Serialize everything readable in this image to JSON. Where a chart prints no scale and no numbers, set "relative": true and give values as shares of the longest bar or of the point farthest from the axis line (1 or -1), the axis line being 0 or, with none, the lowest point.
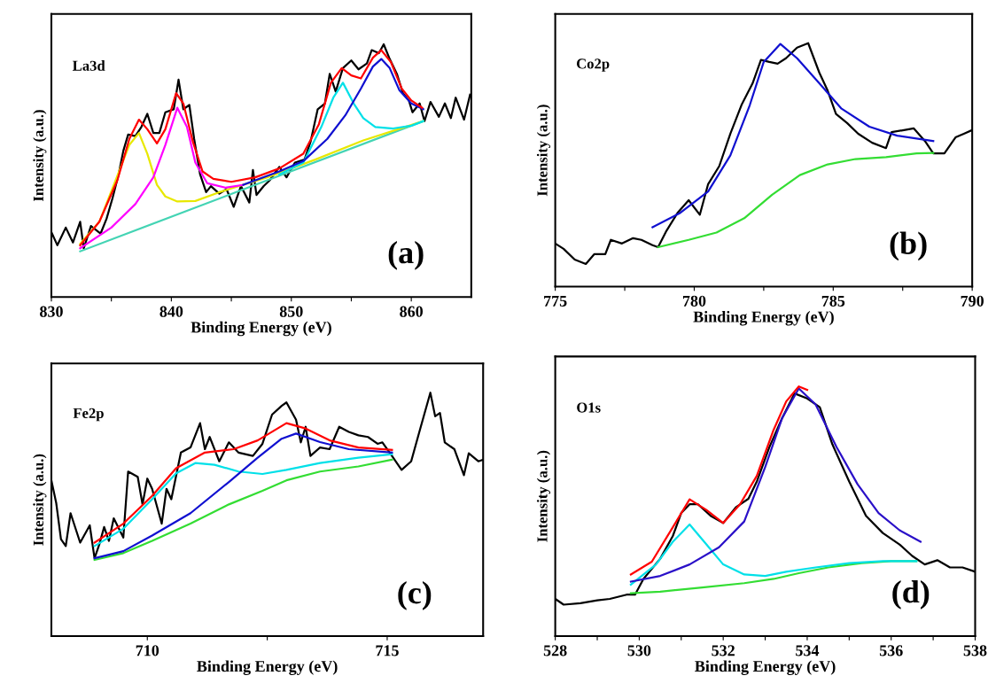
{
  "chart_data": [
    {
      "type": "line",
      "relative": true,
      "tick_labels": "x",
      "xlabel": "Binding Energy (eV)",
      "ylabel": "Intensity (a.u.)",
      "annotations": [
        "La3d",
        "(a)"
      ],
      "xlim": [
        830,
        865
      ],
      "xticks": [
        830,
        {
          "value": 835,
          "label": null
        },
        840,
        {
          "value": 845,
          "label": null
        },
        850,
        {
          "value": 855,
          "label": null
        },
        860
      ],
      "series": [
        {
          "color": "#000000",
          "x": [
            830.0,
            830.5,
            831.2,
            831.8,
            832.4,
            832.7,
            833.3,
            834.1,
            834.6,
            835.1,
            835.6,
            836.0,
            836.4,
            837.0,
            837.5,
            838.0,
            838.5,
            839.0,
            839.5,
            840.2,
            840.6,
            841.0,
            841.5,
            841.9,
            842.4,
            842.9,
            843.3,
            844.0,
            844.6,
            845.2,
            845.8,
            846.5,
            846.8,
            847.1,
            847.7,
            848.2,
            849.0,
            849.6,
            850.3,
            851.1,
            851.6,
            852.2,
            852.8,
            853.2,
            853.7,
            854.3,
            855.0,
            855.6,
            856.3,
            856.7,
            857.3,
            857.7,
            858.2,
            858.8,
            859.3,
            859.8,
            860.1,
            860.7,
            861.1,
            861.6,
            862.3,
            862.8,
            863.3,
            863.7,
            864.4,
            864.9
          ],
          "values": [
            0.257,
            0.205,
            0.275,
            0.216,
            0.298,
            0.193,
            0.281,
            0.251,
            0.31,
            0.392,
            0.485,
            0.579,
            0.643,
            0.637,
            0.673,
            0.725,
            0.649,
            0.649,
            0.731,
            0.743,
            0.86,
            0.743,
            0.76,
            0.626,
            0.485,
            0.415,
            0.439,
            0.409,
            0.427,
            0.357,
            0.439,
            0.374,
            0.503,
            0.404,
            0.439,
            0.462,
            0.515,
            0.474,
            0.532,
            0.544,
            0.614,
            0.743,
            0.766,
            0.883,
            0.813,
            0.906,
            0.936,
            0.901,
            0.924,
            0.977,
            0.965,
            1.0,
            0.942,
            0.883,
            0.807,
            0.778,
            0.731,
            0.766,
            0.696,
            0.772,
            0.713,
            0.766,
            0.708,
            0.789,
            0.702,
            0.801
          ]
        },
        {
          "color": "#44d4b4",
          "x": [
            832.4,
            846.0,
            861.0
          ],
          "values": [
            0.181,
            0.426,
            0.696
          ]
        },
        {
          "color": "#e8e800",
          "x": [
            832.4,
            834.0,
            835.5,
            836.5,
            837.3,
            838.0,
            838.8,
            839.5,
            840.5,
            842.0,
            844.0,
            848.0,
            852.0,
            856.0,
            861.0
          ],
          "values": [
            0.211,
            0.298,
            0.48,
            0.602,
            0.649,
            0.567,
            0.444,
            0.398,
            0.378,
            0.38,
            0.415,
            0.474,
            0.544,
            0.62,
            0.696
          ]
        },
        {
          "color": "#ff00ff",
          "x": [
            832.4,
            835.0,
            837.0,
            838.5,
            839.5,
            840.5,
            841.3,
            842.0,
            843.0,
            844.5,
            846.0
          ],
          "values": [
            0.193,
            0.275,
            0.368,
            0.474,
            0.602,
            0.749,
            0.673,
            0.532,
            0.45,
            0.433,
            0.444
          ]
        },
        {
          "color": "#00e0e8",
          "x": [
            849.0,
            851.0,
            852.5,
            853.5,
            854.3,
            855.2,
            856.0,
            857.0,
            858.5,
            860.0,
            861.0
          ],
          "values": [
            0.485,
            0.532,
            0.673,
            0.789,
            0.848,
            0.766,
            0.708,
            0.673,
            0.667,
            0.678,
            0.696
          ]
        },
        {
          "color": "#1010d0",
          "x": [
            846.0,
            849.0,
            851.0,
            853.0,
            854.5,
            855.8,
            856.8,
            857.5,
            858.2,
            859.0,
            860.0,
            861.0
          ],
          "values": [
            0.444,
            0.497,
            0.538,
            0.626,
            0.719,
            0.825,
            0.912,
            0.942,
            0.906,
            0.819,
            0.766,
            0.743
          ]
        },
        {
          "color": "#ff0000",
          "x": [
            832.4,
            834.0,
            835.5,
            836.5,
            837.3,
            838.0,
            838.8,
            839.5,
            840.4,
            841.0,
            841.8,
            842.6,
            843.5,
            845.0,
            847.0,
            849.0,
            851.0,
            852.3,
            853.3,
            854.2,
            855.0,
            855.8,
            856.8,
            857.5,
            858.3,
            859.2,
            860.0,
            860.9
          ],
          "values": [
            0.205,
            0.298,
            0.462,
            0.626,
            0.702,
            0.664,
            0.608,
            0.664,
            0.807,
            0.766,
            0.614,
            0.497,
            0.468,
            0.456,
            0.474,
            0.509,
            0.567,
            0.684,
            0.848,
            0.906,
            0.877,
            0.865,
            0.947,
            0.977,
            0.93,
            0.825,
            0.778,
            0.749
          ]
        }
      ]
    },
    {
      "type": "line",
      "relative": true,
      "tick_labels": "x",
      "xlabel": "Binding Energy (eV)",
      "ylabel": "Intensity (a.u.)",
      "annotations": [
        "Co2p",
        "(b)"
      ],
      "xlim": [
        775,
        790
      ],
      "xticks": [
        775,
        {
          "value": 777.5,
          "label": null
        },
        780,
        {
          "value": 782.5,
          "label": null
        },
        785,
        {
          "value": 787.5,
          "label": null
        },
        790
      ],
      "series": [
        {
          "color": "#000000",
          "x": [
            775.0,
            775.3,
            775.7,
            776.1,
            776.4,
            776.8,
            777.0,
            777.4,
            777.8,
            778.1,
            778.5,
            778.7,
            779.0,
            779.4,
            779.8,
            780.2,
            780.5,
            780.9,
            781.3,
            781.7,
            782.1,
            782.4,
            782.7,
            783.0,
            783.3,
            783.7,
            784.1,
            784.5,
            784.8,
            785.1,
            785.5,
            785.9,
            786.4,
            786.9,
            787.1,
            787.5,
            787.9,
            788.3,
            788.6,
            789.0,
            789.4,
            789.7,
            790.0
          ],
          "values": [
            0.177,
            0.155,
            0.111,
            0.093,
            0.133,
            0.133,
            0.192,
            0.177,
            0.199,
            0.192,
            0.17,
            0.162,
            0.229,
            0.303,
            0.355,
            0.295,
            0.421,
            0.495,
            0.628,
            0.746,
            0.835,
            0.931,
            0.923,
            0.916,
            0.938,
            0.982,
            1.0,
            0.879,
            0.805,
            0.709,
            0.672,
            0.628,
            0.591,
            0.569,
            0.635,
            0.642,
            0.65,
            0.598,
            0.547,
            0.547,
            0.613,
            0.628,
            0.643
          ]
        },
        {
          "color": "#33dd33",
          "x": [
            778.7,
            779.8,
            780.8,
            781.8,
            782.8,
            783.8,
            784.8,
            785.8,
            786.9,
            788.0,
            788.6
          ],
          "values": [
            0.162,
            0.192,
            0.222,
            0.281,
            0.377,
            0.458,
            0.502,
            0.524,
            0.532,
            0.547,
            0.549
          ]
        },
        {
          "color": "#1010d0",
          "x": [
            778.5,
            779.5,
            780.5,
            781.3,
            782.0,
            782.5,
            783.1,
            783.7,
            784.5,
            785.3,
            786.3,
            787.3,
            788.6
          ],
          "values": [
            0.244,
            0.303,
            0.391,
            0.539,
            0.746,
            0.923,
            0.997,
            0.938,
            0.835,
            0.731,
            0.657,
            0.62,
            0.598
          ]
        }
      ]
    },
    {
      "type": "line",
      "relative": true,
      "tick_labels": "x",
      "xlabel": "Binding Energy (eV)",
      "ylabel": "Intensity (a.u.)",
      "annotations": [
        "Fe2p",
        "(c)"
      ],
      "xlim": [
        708,
        717
      ],
      "xticks": [
        710,
        {
          "value": 712.5,
          "label": null
        },
        715
      ],
      "series": [
        {
          "color": "#000000",
          "x": [
            708.0,
            708.1,
            708.2,
            708.3,
            708.4,
            708.6,
            708.8,
            708.9,
            709.0,
            709.1,
            709.2,
            709.3,
            709.5,
            709.6,
            709.8,
            709.9,
            710.0,
            710.1,
            710.3,
            710.4,
            710.5,
            710.7,
            710.9,
            711.1,
            711.2,
            711.3,
            711.5,
            711.7,
            711.9,
            712.2,
            712.4,
            712.6,
            712.8,
            712.9,
            713.1,
            713.2,
            713.3,
            713.4,
            713.6,
            713.8,
            714.0,
            714.2,
            714.4,
            714.6,
            714.8,
            714.9,
            715.1,
            715.3,
            715.5,
            715.7,
            715.9,
            716.0,
            716.1,
            716.2,
            716.4,
            716.6,
            716.7,
            716.9,
            717.0
          ],
          "values": [
            0.64,
            0.548,
            0.398,
            0.37,
            0.505,
            0.384,
            0.455,
            0.32,
            0.377,
            0.448,
            0.391,
            0.484,
            0.405,
            0.676,
            0.654,
            0.541,
            0.647,
            0.605,
            0.462,
            0.605,
            0.562,
            0.754,
            0.775,
            0.875,
            0.768,
            0.818,
            0.718,
            0.796,
            0.754,
            0.74,
            0.79,
            0.91,
            0.946,
            0.96,
            0.889,
            0.796,
            0.86,
            0.74,
            0.775,
            0.768,
            0.86,
            0.839,
            0.825,
            0.818,
            0.79,
            0.796,
            0.74,
            0.683,
            0.718,
            0.86,
            1.0,
            0.903,
            0.917,
            0.796,
            0.768,
            0.661,
            0.751,
            0.718,
            0.725
          ]
        },
        {
          "color": "#33dd33",
          "x": [
            708.9,
            709.5,
            710.1,
            710.9,
            711.7,
            712.4,
            712.9,
            713.6,
            714.4,
            715.1
          ],
          "values": [
            0.313,
            0.341,
            0.391,
            0.462,
            0.541,
            0.597,
            0.64,
            0.676,
            0.697,
            0.725
          ]
        },
        {
          "color": "#00e0e8",
          "x": [
            708.9,
            709.5,
            710.1,
            710.6,
            711.0,
            711.4,
            711.9,
            712.4,
            712.9,
            713.6,
            714.4,
            715.1
          ],
          "values": [
            0.37,
            0.441,
            0.562,
            0.669,
            0.711,
            0.704,
            0.676,
            0.666,
            0.683,
            0.711,
            0.733,
            0.747
          ]
        },
        {
          "color": "#1010d0",
          "x": [
            708.9,
            709.5,
            710.1,
            710.9,
            711.7,
            712.3,
            712.8,
            713.1,
            713.6,
            714.2,
            715.1
          ],
          "values": [
            0.32,
            0.349,
            0.413,
            0.505,
            0.633,
            0.733,
            0.811,
            0.832,
            0.797,
            0.768,
            0.754
          ]
        },
        {
          "color": "#ff0000",
          "x": [
            708.9,
            709.5,
            710.1,
            710.6,
            711.2,
            711.8,
            712.3,
            712.9,
            713.3,
            713.8,
            714.4,
            715.1
          ],
          "values": [
            0.384,
            0.462,
            0.576,
            0.69,
            0.754,
            0.768,
            0.804,
            0.875,
            0.853,
            0.804,
            0.775,
            0.765
          ]
        }
      ]
    },
    {
      "type": "line",
      "relative": true,
      "tick_labels": "x",
      "xlabel": "Binding Energy (eV)",
      "ylabel": "Intensity (a.u.)",
      "annotations": [
        "O1s",
        "(d)"
      ],
      "xlim": [
        528,
        538
      ],
      "xticks": [
        528,
        {
          "value": 529,
          "label": null
        },
        530,
        {
          "value": 531,
          "label": null
        },
        532,
        {
          "value": 533,
          "label": null
        },
        534,
        {
          "value": 535,
          "label": null
        },
        536,
        {
          "value": 537,
          "label": null
        },
        538
      ],
      "series": [
        {
          "color": "#000000",
          "x": [
            528.0,
            528.2,
            528.6,
            529.0,
            529.3,
            529.7,
            529.9,
            530.1,
            530.5,
            530.8,
            531.0,
            531.2,
            531.4,
            531.7,
            532.0,
            532.3,
            532.6,
            532.8,
            533.1,
            533.4,
            533.7,
            534.0,
            534.3,
            534.6,
            535.0,
            535.4,
            535.8,
            536.2,
            536.5,
            536.8,
            537.1,
            537.4,
            537.7,
            538.0
          ],
          "values": [
            0.149,
            0.126,
            0.132,
            0.143,
            0.149,
            0.166,
            0.166,
            0.229,
            0.31,
            0.401,
            0.493,
            0.528,
            0.528,
            0.482,
            0.453,
            0.516,
            0.55,
            0.619,
            0.757,
            0.872,
            0.972,
            0.952,
            0.917,
            0.768,
            0.619,
            0.482,
            0.413,
            0.367,
            0.321,
            0.287,
            0.304,
            0.275,
            0.275,
            0.258
          ]
        },
        {
          "color": "#33dd33",
          "x": [
            529.8,
            530.5,
            531.5,
            532.5,
            533.2,
            533.8,
            534.5,
            535.3,
            536.0,
            536.6
          ],
          "values": [
            0.172,
            0.178,
            0.195,
            0.212,
            0.229,
            0.252,
            0.275,
            0.292,
            0.3,
            0.3
          ]
        },
        {
          "color": "#00e0e8",
          "x": [
            529.8,
            530.4,
            530.8,
            531.2,
            531.6,
            532.0,
            532.5,
            533.0,
            533.5,
            534.2,
            535.0,
            535.8,
            536.6
          ],
          "values": [
            0.206,
            0.287,
            0.378,
            0.447,
            0.367,
            0.287,
            0.247,
            0.241,
            0.258,
            0.275,
            0.292,
            0.3,
            0.3
          ]
        },
        {
          "color": "#2a10c8",
          "x": [
            529.8,
            530.5,
            531.2,
            531.9,
            532.5,
            533.0,
            533.4,
            533.8,
            534.2,
            534.7,
            535.2,
            535.7,
            536.2,
            536.7
          ],
          "values": [
            0.218,
            0.241,
            0.287,
            0.356,
            0.459,
            0.677,
            0.872,
            0.992,
            0.928,
            0.757,
            0.608,
            0.493,
            0.424,
            0.378
          ]
        },
        {
          "color": "#ff0000",
          "x": [
            529.8,
            530.3,
            530.8,
            531.2,
            531.6,
            532.0,
            532.4,
            532.8,
            533.2,
            533.5,
            533.8,
            534.0
          ],
          "values": [
            0.247,
            0.298,
            0.436,
            0.548,
            0.505,
            0.453,
            0.528,
            0.642,
            0.826,
            0.94,
            1.0,
            0.986
          ]
        }
      ]
    }
  ]
}
